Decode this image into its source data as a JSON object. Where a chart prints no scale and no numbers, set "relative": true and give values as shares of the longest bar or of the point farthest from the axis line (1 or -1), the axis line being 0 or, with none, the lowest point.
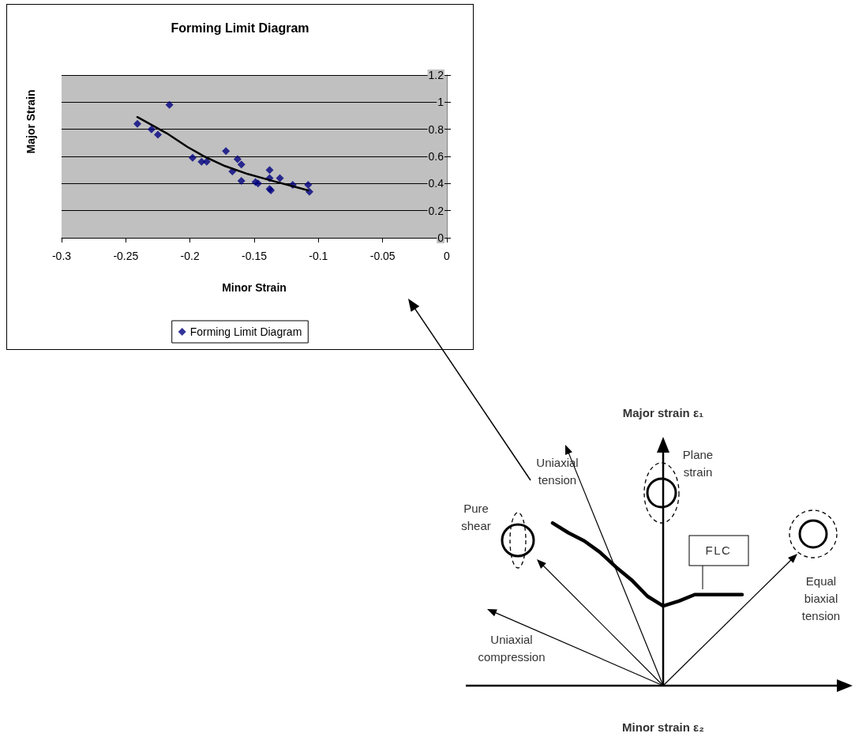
{
  "chart_data": [
    {
      "type": "scatter",
      "title": "Forming Limit Diagram",
      "xlabel": "Minor Strain",
      "ylabel": "Major Strain",
      "xlim": [
        -0.3,
        0
      ],
      "xticks": [
        -0.3,
        -0.25,
        -0.2,
        -0.15,
        -0.1,
        -0.05,
        0
      ],
      "ylim": [
        0,
        1.2
      ],
      "yticks": [
        0,
        0.2,
        0.4,
        0.6,
        0.8,
        1,
        1.2
      ],
      "grid": "y",
      "legend": "bottom",
      "series": [
        {
          "name": "Forming Limit Diagram",
          "color": "#000080",
          "marker": "diamond",
          "x": [
            -0.241,
            -0.23,
            -0.225,
            -0.216,
            -0.198,
            -0.191,
            -0.187,
            -0.172,
            -0.167,
            -0.163,
            -0.16,
            -0.16,
            -0.149,
            -0.147,
            -0.138,
            -0.138,
            -0.138,
            -0.137,
            -0.13,
            -0.12,
            -0.108,
            -0.107
          ],
          "values": [
            0.84,
            0.8,
            0.76,
            0.98,
            0.59,
            0.56,
            0.56,
            0.64,
            0.49,
            0.58,
            0.54,
            0.42,
            0.41,
            0.4,
            0.5,
            0.44,
            0.36,
            0.35,
            0.44,
            0.39,
            0.39,
            0.34
          ]
        },
        {
          "type": "line",
          "marker": "none",
          "color": "#000000",
          "x": [
            -0.241,
            -0.218,
            -0.202,
            -0.189,
            -0.173,
            -0.155,
            -0.136,
            -0.12,
            -0.108
          ],
          "values": [
            0.89,
            0.77,
            0.67,
            0.6,
            0.53,
            0.47,
            0.42,
            0.38,
            0.35
          ]
        }
      ]
    },
    {
      "type": "line",
      "relative": true,
      "xlabel": "Minor strain ε₂",
      "ylabel": "Major strain ε₁",
      "marker": "none",
      "categories": [
        null,
        null,
        null,
        null,
        null,
        null,
        null,
        null,
        null,
        null,
        null,
        null,
        null,
        null,
        null,
        null,
        null,
        null,
        null,
        null,
        null,
        null,
        null,
        null,
        null
      ],
      "values": [
        null,
        null,
        null,
        null,
        null,
        1,
        0.94,
        0.89,
        0.82,
        0.73,
        0.65,
        0.55,
        0.49,
        0.52,
        0.56,
        0.56,
        0.56,
        0.56,
        null,
        null,
        null,
        null,
        null,
        null,
        null
      ],
      "color": "#000000",
      "annotations": [
        "Uniaxial tension",
        "Pure shear",
        "Plane strain",
        "Equal biaxial tension",
        "Uniaxial compression",
        "FLC"
      ]
    }
  ]
}
